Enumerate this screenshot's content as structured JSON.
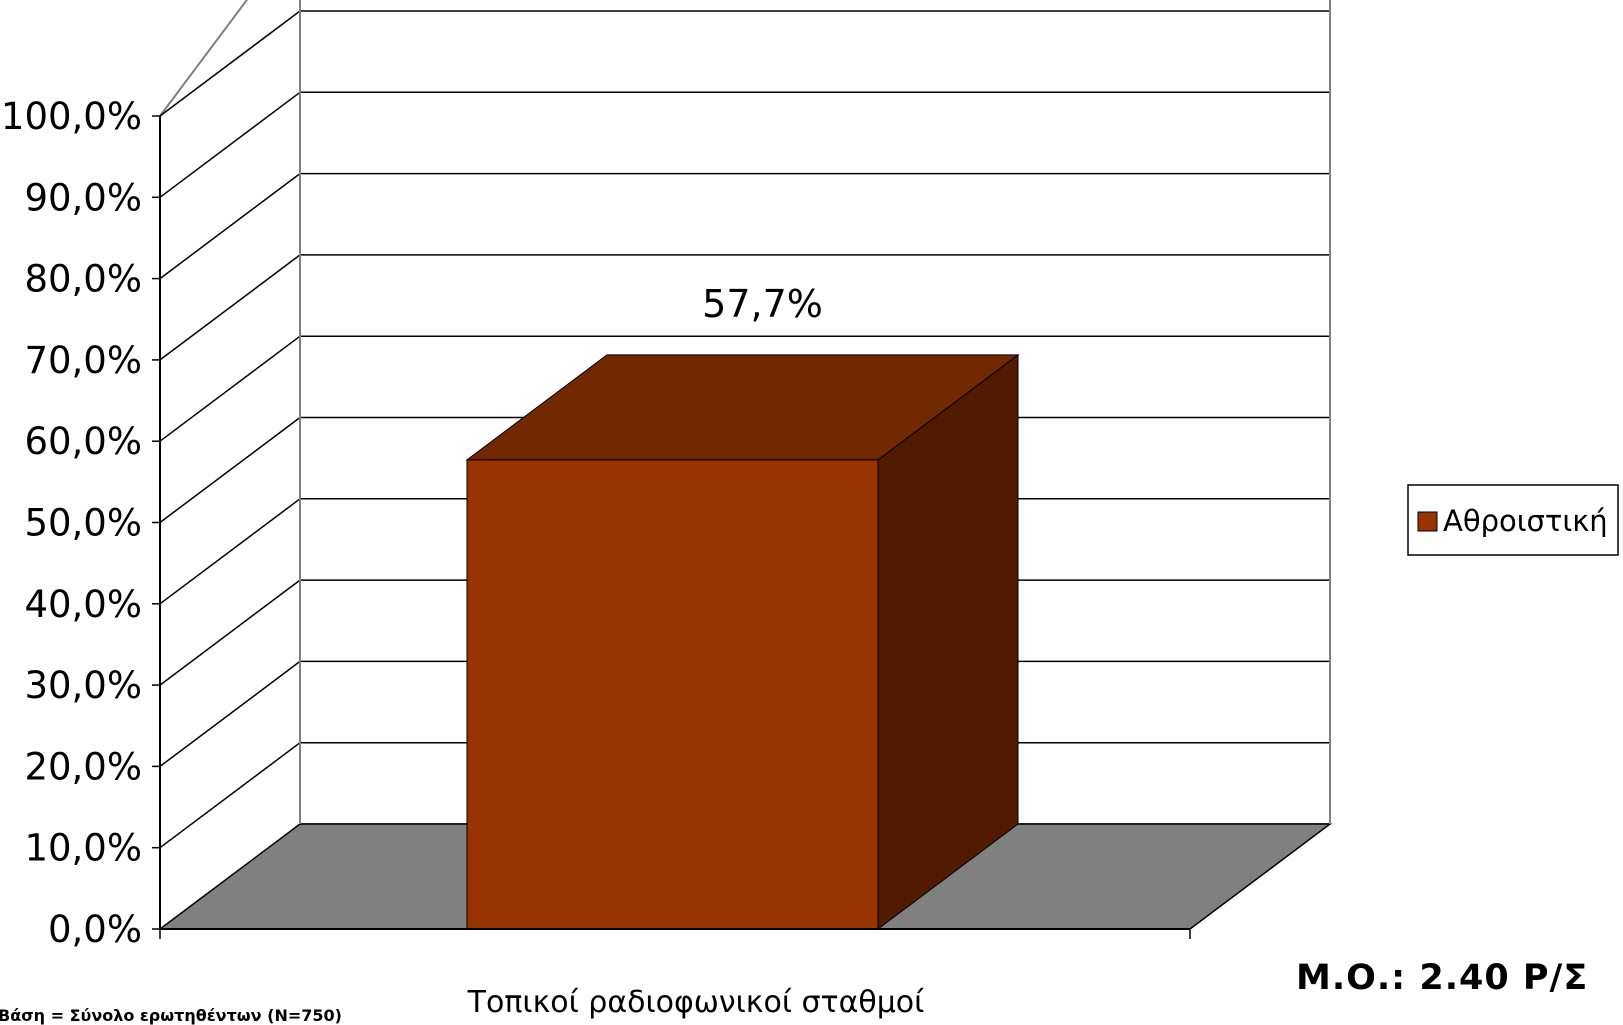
{
  "chart_data": {
    "type": "bar",
    "style": "3d",
    "categories": [
      "Τοπικοί ραδιοφωνικοί σταθμοί"
    ],
    "series": [
      {
        "name": "Αθροιστική",
        "values": [
          57.7
        ],
        "color": "#993300"
      }
    ],
    "data_labels": [
      "57,7%"
    ],
    "yticks": [
      "0,0%",
      "10,0%",
      "20,0%",
      "30,0%",
      "40,0%",
      "50,0%",
      "60,0%",
      "70,0%",
      "80,0%",
      "90,0%",
      "100,0%"
    ],
    "ylim": [
      0,
      100
    ],
    "grid": true,
    "legend": "right",
    "colors": {
      "bar_front": "#993300",
      "bar_top": "#722800",
      "bar_side": "#521b00",
      "floor": "#808080"
    }
  },
  "notes": {
    "mean": "Μ.Ο.: 2.40 Ρ/Σ",
    "base": "Βάση = Σύνολο ερωτηθέντων (Ν=750)"
  }
}
